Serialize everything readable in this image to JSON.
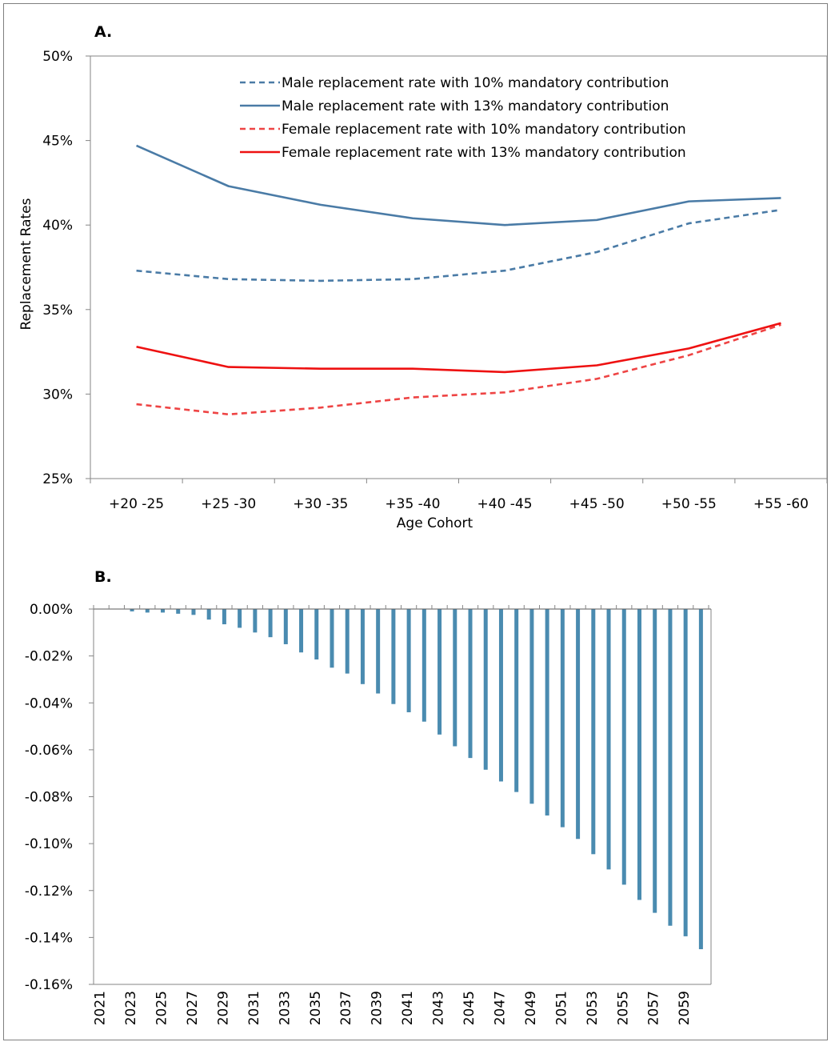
{
  "chart_data": [
    {
      "panel_label": "A.",
      "type": "line",
      "xlabel": "Age Cohort",
      "ylabel": "Replacement Rates",
      "categories": [
        "+20 -25",
        "+25 -30",
        "+30 -35",
        "+35 -40",
        "+40 -45",
        "+45 -50",
        "+50 -55",
        "+55 -60"
      ],
      "ylim": [
        25,
        50
      ],
      "yticks": [
        "25%",
        "30%",
        "35%",
        "40%",
        "45%",
        "50%"
      ],
      "grid": false,
      "legend_position": "top-right",
      "series": [
        {
          "name": "Male replacement rate with 10% mandatory contribution",
          "color": "#4a7ba6",
          "style": "dashed",
          "values": [
            37.3,
            36.8,
            36.7,
            36.8,
            37.3,
            38.4,
            40.1,
            40.9
          ]
        },
        {
          "name": "Male replacement rate with 13% mandatory contribution",
          "color": "#4a7ba6",
          "style": "solid",
          "values": [
            44.7,
            42.3,
            41.2,
            40.4,
            40.0,
            40.3,
            41.4,
            41.6
          ]
        },
        {
          "name": "Female replacement rate with 10% mandatory contribution",
          "color": "#ee4444",
          "style": "dashed",
          "values": [
            29.4,
            28.8,
            29.2,
            29.8,
            30.1,
            30.9,
            32.3,
            34.1
          ]
        },
        {
          "name": "Female replacement rate with 13% mandatory contribution",
          "color": "#ee1111",
          "style": "solid",
          "values": [
            32.8,
            31.6,
            31.5,
            31.5,
            31.3,
            31.7,
            32.7,
            34.2
          ]
        }
      ]
    },
    {
      "panel_label": "B.",
      "type": "bar",
      "categories": [
        "2021",
        "2022",
        "2023",
        "2024",
        "2025",
        "2026",
        "2027",
        "2028",
        "2029",
        "2030",
        "2031",
        "2032",
        "2033",
        "2034",
        "2035",
        "2036",
        "2037",
        "2038",
        "2039",
        "2040",
        "2041",
        "2042",
        "2043",
        "2044",
        "2045",
        "2046",
        "2047",
        "2048",
        "2049",
        "2050",
        "2051",
        "2052",
        "2053",
        "2054",
        "2055",
        "2056",
        "2057",
        "2058",
        "2059",
        "2060"
      ],
      "xtick_labels": [
        "2021",
        "2023",
        "2025",
        "2027",
        "2029",
        "2031",
        "2033",
        "2035",
        "2037",
        "2039",
        "2041",
        "2043",
        "2045",
        "2047",
        "2049",
        "2051",
        "2053",
        "2055",
        "2057",
        "2059"
      ],
      "values": [
        0,
        0,
        -0.001,
        -0.0015,
        -0.0015,
        -0.002,
        -0.0025,
        -0.0045,
        -0.0065,
        -0.008,
        -0.01,
        -0.012,
        -0.015,
        -0.0185,
        -0.0215,
        -0.025,
        -0.0275,
        -0.032,
        -0.036,
        -0.0405,
        -0.044,
        -0.048,
        -0.0535,
        -0.0585,
        -0.0635,
        -0.0685,
        -0.0735,
        -0.078,
        -0.083,
        -0.088,
        -0.093,
        -0.098,
        -0.1045,
        -0.111,
        -0.1175,
        -0.124,
        -0.1295,
        -0.135,
        -0.1395,
        -0.145
      ],
      "ylim": [
        -0.16,
        0
      ],
      "yticks": [
        "0.00%",
        "-0.02%",
        "-0.04%",
        "-0.06%",
        "-0.08%",
        "-0.10%",
        "-0.12%",
        "-0.14%",
        "-0.16%"
      ],
      "color": "#4a8bb0",
      "grid": false
    }
  ]
}
